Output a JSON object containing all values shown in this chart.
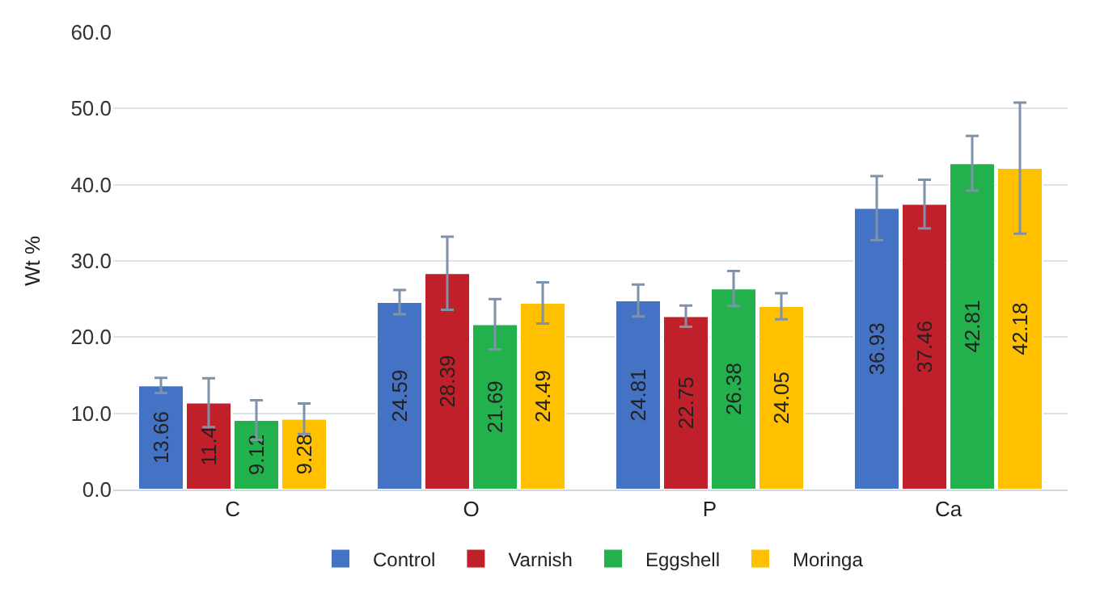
{
  "chart_data": {
    "type": "bar",
    "ylabel": "Wt %",
    "categories": [
      "C",
      "O",
      "P",
      "Ca"
    ],
    "series": [
      {
        "name": "Control",
        "color": "#4472c4",
        "values": [
          13.66,
          24.59,
          24.81,
          36.93
        ],
        "errors": [
          1.0,
          1.6,
          2.1,
          4.2
        ]
      },
      {
        "name": "Varnish",
        "color": "#c0202a",
        "values": [
          11.4,
          28.39,
          22.75,
          37.46
        ],
        "errors": [
          3.2,
          4.8,
          1.4,
          3.2
        ]
      },
      {
        "name": "Eggshell",
        "color": "#22b14c",
        "values": [
          9.12,
          21.69,
          26.38,
          42.81
        ],
        "errors": [
          2.6,
          3.3,
          2.3,
          3.6
        ]
      },
      {
        "name": "Moringa",
        "color": "#ffc000",
        "values": [
          9.28,
          24.49,
          24.05,
          42.18
        ],
        "errors": [
          2.0,
          2.7,
          1.7,
          8.6
        ]
      }
    ],
    "ylim": [
      0,
      60
    ],
    "yticks": [
      {
        "value": 0,
        "label": "0.0"
      },
      {
        "value": 10,
        "label": "10.0"
      },
      {
        "value": 20,
        "label": "20.0"
      },
      {
        "value": 30,
        "label": "30.0"
      },
      {
        "value": 40,
        "label": "40.0"
      },
      {
        "value": 50,
        "label": "50.0"
      },
      {
        "value": 60,
        "label": "60.0"
      }
    ],
    "grid": "y",
    "legend": "bottom",
    "data_labels": true
  }
}
